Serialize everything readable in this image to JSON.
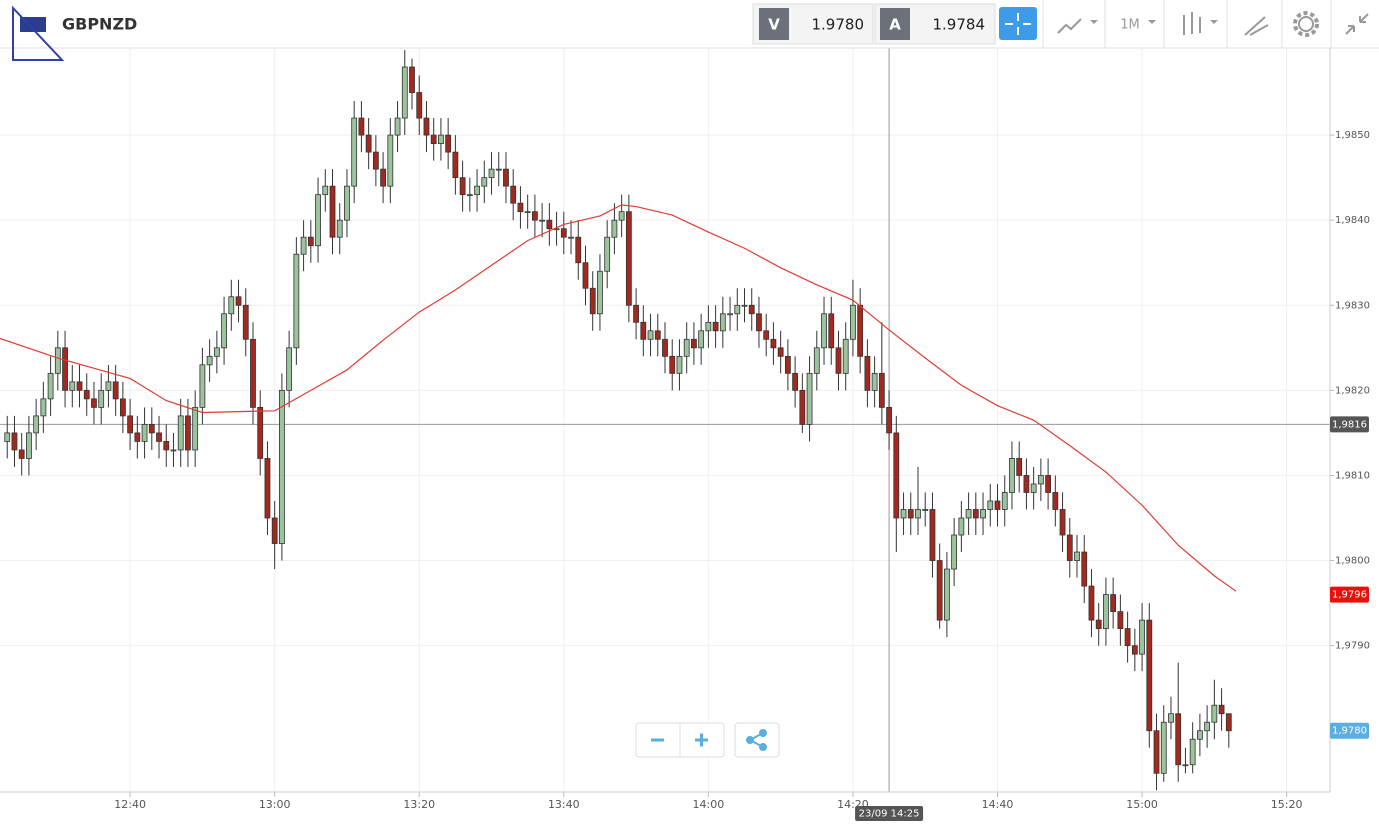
{
  "header": {
    "symbol": "GBPNZD",
    "bid_label": "V",
    "bid": "1.9780",
    "ask_label": "A",
    "ask": "1.9784",
    "timeframe": "1M"
  },
  "chart_data": {
    "type": "candlestick",
    "xlim": [
      "12:22",
      "15:26"
    ],
    "xticks": [
      "12:40",
      "13:00",
      "13:20",
      "13:40",
      "14:00",
      "14:20",
      "14:40",
      "15:00",
      "15:20"
    ],
    "ylim": [
      1.97728,
      1.986
    ],
    "yticks": [
      {
        "value": 1.979,
        "label": "1,9790"
      },
      {
        "value": 1.98,
        "label": "1,9800"
      },
      {
        "value": 1.981,
        "label": "1,9810"
      },
      {
        "value": 1.982,
        "label": "1,9820"
      },
      {
        "value": 1.983,
        "label": "1,9830"
      },
      {
        "value": 1.984,
        "label": "1,9840"
      },
      {
        "value": 1.985,
        "label": "1,9850"
      }
    ],
    "grid": true,
    "up_color": "#9cc49c",
    "down_color": "#a3291f",
    "x": [
      "12:23",
      "12:24",
      "12:25",
      "12:26",
      "12:27",
      "12:28",
      "12:29",
      "12:30",
      "12:31",
      "12:32",
      "12:33",
      "12:34",
      "12:35",
      "12:36",
      "12:37",
      "12:38",
      "12:39",
      "12:40",
      "12:41",
      "12:42",
      "12:43",
      "12:44",
      "12:45",
      "12:46",
      "12:47",
      "12:48",
      "12:49",
      "12:50",
      "12:51",
      "12:52",
      "12:53",
      "12:54",
      "12:55",
      "12:56",
      "12:57",
      "12:58",
      "12:59",
      "13:00",
      "13:01",
      "13:02",
      "13:03",
      "13:04",
      "13:05",
      "13:06",
      "13:07",
      "13:08",
      "13:09",
      "13:10",
      "13:11",
      "13:12",
      "13:13",
      "13:14",
      "13:15",
      "13:16",
      "13:17",
      "13:18",
      "13:19",
      "13:20",
      "13:21",
      "13:22",
      "13:23",
      "13:24",
      "13:25",
      "13:26",
      "13:27",
      "13:28",
      "13:29",
      "13:30",
      "13:31",
      "13:32",
      "13:33",
      "13:34",
      "13:35",
      "13:36",
      "13:37",
      "13:38",
      "13:39",
      "13:40",
      "13:41",
      "13:42",
      "13:43",
      "13:44",
      "13:45",
      "13:46",
      "13:47",
      "13:48",
      "13:49",
      "13:50",
      "13:51",
      "13:52",
      "13:53",
      "13:54",
      "13:55",
      "13:56",
      "13:57",
      "13:58",
      "13:59",
      "14:00",
      "14:01",
      "14:02",
      "14:03",
      "14:04",
      "14:05",
      "14:06",
      "14:07",
      "14:08",
      "14:09",
      "14:10",
      "14:11",
      "14:12",
      "14:13",
      "14:14",
      "14:15",
      "14:16",
      "14:17",
      "14:18",
      "14:19",
      "14:20",
      "14:21",
      "14:22",
      "14:23",
      "14:24",
      "14:25",
      "14:26",
      "14:27",
      "14:28",
      "14:29",
      "14:30",
      "14:31",
      "14:32",
      "14:33",
      "14:34",
      "14:35",
      "14:36",
      "14:37",
      "14:38",
      "14:39",
      "14:40",
      "14:41",
      "14:42",
      "14:43",
      "14:44",
      "14:45",
      "14:46",
      "14:47",
      "14:48",
      "14:49",
      "14:50",
      "14:51",
      "14:52",
      "14:53",
      "14:54",
      "14:55",
      "14:56",
      "14:57",
      "14:58",
      "14:59",
      "15:00",
      "15:01",
      "15:02",
      "15:03",
      "15:04",
      "15:05",
      "15:06",
      "15:07",
      "15:08",
      "15:09",
      "15:10",
      "15:11",
      "15:12"
    ],
    "open": [
      1.9814,
      1.9815,
      1.9813,
      1.9812,
      1.9815,
      1.9817,
      1.9819,
      1.9822,
      1.9825,
      1.982,
      1.9821,
      1.982,
      1.9819,
      1.9818,
      1.982,
      1.9821,
      1.9819,
      1.9817,
      1.9815,
      1.9814,
      1.9816,
      1.9815,
      1.9814,
      1.9813,
      1.9813,
      1.9817,
      1.9813,
      1.9818,
      1.9823,
      1.9824,
      1.9825,
      1.9829,
      1.9831,
      1.983,
      1.9826,
      1.9818,
      1.9812,
      1.9805,
      1.9802,
      1.982,
      1.9825,
      1.9836,
      1.9838,
      1.9837,
      1.9843,
      1.9844,
      1.9838,
      1.984,
      1.9844,
      1.9852,
      1.985,
      1.9848,
      1.9846,
      1.9844,
      1.985,
      1.9852,
      1.9858,
      1.9855,
      1.9852,
      1.985,
      1.9849,
      1.985,
      1.9848,
      1.9845,
      1.9843,
      1.9843,
      1.9844,
      1.9845,
      1.9846,
      1.9846,
      1.9844,
      1.9842,
      1.9841,
      1.9841,
      1.984,
      1.984,
      1.9839,
      1.9839,
      1.9838,
      1.9838,
      1.9835,
      1.9832,
      1.9829,
      1.9834,
      1.9838,
      1.984,
      1.9841,
      1.983,
      1.9828,
      1.9826,
      1.9827,
      1.9826,
      1.9824,
      1.9822,
      1.9824,
      1.9826,
      1.9825,
      1.9827,
      1.9828,
      1.9827,
      1.9829,
      1.9829,
      1.983,
      1.983,
      1.9829,
      1.9827,
      1.9826,
      1.9825,
      1.9824,
      1.9822,
      1.982,
      1.9816,
      1.9822,
      1.9825,
      1.9829,
      1.9825,
      1.9822,
      1.9826,
      1.983,
      1.9824,
      1.982,
      1.9822,
      1.9818,
      1.9815,
      1.9805,
      1.9806,
      1.9805,
      1.9806,
      1.9806,
      1.98,
      1.9793,
      1.9799,
      1.9803,
      1.9805,
      1.9806,
      1.9805,
      1.9806,
      1.9807,
      1.9806,
      1.9808,
      1.9812,
      1.981,
      1.9808,
      1.9809,
      1.981,
      1.9808,
      1.9806,
      1.9803,
      1.98,
      1.9801,
      1.9797,
      1.9793,
      1.9792,
      1.9796,
      1.9794,
      1.9792,
      1.979,
      1.9789,
      1.9793,
      1.978,
      1.9775,
      1.9781,
      1.9782,
      1.9776,
      1.9776,
      1.9779,
      1.978,
      1.9781,
      1.9783,
      1.9782
    ],
    "high": [
      1.9817,
      1.9817,
      1.9815,
      1.9817,
      1.9819,
      1.9821,
      1.9824,
      1.9827,
      1.9827,
      1.9823,
      1.9823,
      1.9822,
      1.9821,
      1.9822,
      1.9823,
      1.9823,
      1.9821,
      1.9819,
      1.9817,
      1.9818,
      1.9818,
      1.9817,
      1.9816,
      1.9815,
      1.9819,
      1.9819,
      1.982,
      1.9825,
      1.9826,
      1.9827,
      1.9831,
      1.9833,
      1.9833,
      1.9832,
      1.9828,
      1.982,
      1.9814,
      1.9807,
      1.9822,
      1.9827,
      1.9838,
      1.984,
      1.984,
      1.9845,
      1.9846,
      1.9846,
      1.9842,
      1.9846,
      1.9854,
      1.9854,
      1.9852,
      1.985,
      1.9848,
      1.9852,
      1.9854,
      1.986,
      1.9859,
      1.9857,
      1.9854,
      1.9852,
      1.9852,
      1.9852,
      1.985,
      1.9847,
      1.9845,
      1.9846,
      1.9847,
      1.9848,
      1.9848,
      1.9848,
      1.9846,
      1.9844,
      1.9843,
      1.9843,
      1.9842,
      1.9842,
      1.9841,
      1.9841,
      1.984,
      1.984,
      1.9837,
      1.9834,
      1.9836,
      1.984,
      1.9842,
      1.9843,
      1.9843,
      1.9832,
      1.983,
      1.9829,
      1.9829,
      1.9828,
      1.9826,
      1.9826,
      1.9828,
      1.9828,
      1.9829,
      1.983,
      1.983,
      1.9831,
      1.9831,
      1.9832,
      1.9832,
      1.9832,
      1.9831,
      1.9829,
      1.9828,
      1.9827,
      1.9826,
      1.9824,
      1.9822,
      1.9824,
      1.9827,
      1.9831,
      1.9831,
      1.9827,
      1.9828,
      1.9833,
      1.9832,
      1.9826,
      1.9824,
      1.9828,
      1.982,
      1.9817,
      1.9808,
      1.9808,
      1.9811,
      1.9808,
      1.9808,
      1.9802,
      1.9801,
      1.9805,
      1.9807,
      1.9808,
      1.9808,
      1.9808,
      1.9809,
      1.9809,
      1.981,
      1.9814,
      1.9814,
      1.9812,
      1.9811,
      1.9812,
      1.9812,
      1.981,
      1.9808,
      1.9805,
      1.9803,
      1.9803,
      1.9799,
      1.9795,
      1.9798,
      1.9798,
      1.9796,
      1.9794,
      1.9792,
      1.9795,
      1.9795,
      1.9782,
      1.9783,
      1.9784,
      1.9788,
      1.9778,
      1.9781,
      1.9782,
      1.9783,
      1.9786,
      1.9785,
      1.9782
    ],
    "low": [
      1.9812,
      1.9811,
      1.981,
      1.981,
      1.9813,
      1.9815,
      1.9817,
      1.982,
      1.9818,
      1.9818,
      1.9818,
      1.9817,
      1.9816,
      1.9816,
      1.9818,
      1.9817,
      1.9815,
      1.9813,
      1.9812,
      1.9812,
      1.9813,
      1.9812,
      1.9811,
      1.9811,
      1.9811,
      1.9811,
      1.9811,
      1.9816,
      1.9821,
      1.9822,
      1.9823,
      1.9827,
      1.9828,
      1.9824,
      1.9816,
      1.981,
      1.9803,
      1.9799,
      1.98,
      1.9818,
      1.9823,
      1.9834,
      1.9835,
      1.9835,
      1.9841,
      1.9836,
      1.9836,
      1.9838,
      1.9842,
      1.9848,
      1.9846,
      1.9844,
      1.9842,
      1.9842,
      1.9848,
      1.985,
      1.9853,
      1.985,
      1.9848,
      1.9847,
      1.9847,
      1.9846,
      1.9843,
      1.9841,
      1.9841,
      1.9841,
      1.9842,
      1.9843,
      1.9844,
      1.9842,
      1.984,
      1.9839,
      1.9839,
      1.9838,
      1.9838,
      1.9837,
      1.9837,
      1.9836,
      1.9836,
      1.9833,
      1.983,
      1.9827,
      1.9827,
      1.9832,
      1.9836,
      1.9838,
      1.9828,
      1.9826,
      1.9824,
      1.9824,
      1.9824,
      1.9822,
      1.982,
      1.982,
      1.9822,
      1.9823,
      1.9823,
      1.9825,
      1.9825,
      1.9825,
      1.9827,
      1.9827,
      1.9828,
      1.9827,
      1.9825,
      1.9824,
      1.9823,
      1.9822,
      1.982,
      1.9818,
      1.9815,
      1.9814,
      1.982,
      1.9823,
      1.9823,
      1.982,
      1.982,
      1.9824,
      1.9822,
      1.9818,
      1.9818,
      1.9816,
      1.9813,
      1.9801,
      1.9803,
      1.9803,
      1.9803,
      1.9804,
      1.9798,
      1.9792,
      1.9791,
      1.9797,
      1.9801,
      1.9803,
      1.9803,
      1.9803,
      1.9804,
      1.9804,
      1.9804,
      1.9806,
      1.9808,
      1.9806,
      1.9806,
      1.9807,
      1.9806,
      1.9804,
      1.9801,
      1.9798,
      1.9798,
      1.9795,
      1.9791,
      1.979,
      1.979,
      1.9792,
      1.979,
      1.9788,
      1.9787,
      1.9787,
      1.9778,
      1.9773,
      1.9774,
      1.9779,
      1.9774,
      1.9775,
      1.9775,
      1.9777,
      1.9778,
      1.9779,
      1.978,
      1.9778
    ],
    "close": [
      1.9815,
      1.9813,
      1.9812,
      1.9815,
      1.9817,
      1.9819,
      1.9822,
      1.9825,
      1.982,
      1.9821,
      1.982,
      1.9819,
      1.9818,
      1.982,
      1.9821,
      1.9819,
      1.9817,
      1.9815,
      1.9814,
      1.9816,
      1.9815,
      1.9814,
      1.9813,
      1.9813,
      1.9817,
      1.9813,
      1.9818,
      1.9823,
      1.9824,
      1.9825,
      1.9829,
      1.9831,
      1.983,
      1.9826,
      1.9818,
      1.9812,
      1.9805,
      1.9802,
      1.982,
      1.9825,
      1.9836,
      1.9838,
      1.9837,
      1.9843,
      1.9844,
      1.9838,
      1.984,
      1.9844,
      1.9852,
      1.985,
      1.9848,
      1.9846,
      1.9844,
      1.985,
      1.9852,
      1.9858,
      1.9855,
      1.9852,
      1.985,
      1.9849,
      1.985,
      1.9848,
      1.9845,
      1.9843,
      1.9843,
      1.9844,
      1.9845,
      1.9846,
      1.9846,
      1.9844,
      1.9842,
      1.9841,
      1.9841,
      1.984,
      1.984,
      1.9839,
      1.9839,
      1.9838,
      1.9838,
      1.9835,
      1.9832,
      1.9829,
      1.9834,
      1.9838,
      1.984,
      1.9841,
      1.983,
      1.9828,
      1.9826,
      1.9827,
      1.9826,
      1.9824,
      1.9822,
      1.9824,
      1.9826,
      1.9825,
      1.9827,
      1.9828,
      1.9827,
      1.9829,
      1.9829,
      1.983,
      1.983,
      1.9829,
      1.9827,
      1.9826,
      1.9825,
      1.9824,
      1.9822,
      1.982,
      1.9816,
      1.9822,
      1.9825,
      1.9829,
      1.9825,
      1.9822,
      1.9826,
      1.983,
      1.9824,
      1.982,
      1.9822,
      1.9818,
      1.9815,
      1.9805,
      1.9806,
      1.9805,
      1.9806,
      1.9806,
      1.98,
      1.9793,
      1.9799,
      1.9803,
      1.9805,
      1.9806,
      1.9805,
      1.9806,
      1.9807,
      1.9806,
      1.9808,
      1.9812,
      1.981,
      1.9808,
      1.9809,
      1.981,
      1.9808,
      1.9806,
      1.9803,
      1.98,
      1.9801,
      1.9797,
      1.9793,
      1.9792,
      1.9796,
      1.9794,
      1.9792,
      1.979,
      1.9789,
      1.9793,
      1.978,
      1.9775,
      1.9781,
      1.9782,
      1.9776,
      1.9776,
      1.9779,
      1.978,
      1.9781,
      1.9783,
      1.9782,
      1.978
    ],
    "ma": {
      "color": "#e03c31",
      "x": [
        "12:22",
        "12:30",
        "12:40",
        "12:45",
        "12:50",
        "13:00",
        "13:05",
        "13:10",
        "13:15",
        "13:20",
        "13:25",
        "13:30",
        "13:35",
        "13:40",
        "13:45",
        "13:48",
        "13:50",
        "13:55",
        "14:00",
        "14:05",
        "14:10",
        "14:15",
        "14:20",
        "14:25",
        "14:30",
        "14:35",
        "14:40",
        "14:45",
        "14:50",
        "14:55",
        "15:00",
        "15:05",
        "15:10",
        "15:13"
      ],
      "values": [
        1.98261,
        1.98238,
        1.98214,
        1.98188,
        1.98174,
        1.98176,
        1.982,
        1.98224,
        1.98259,
        1.98292,
        1.98318,
        1.98347,
        1.98376,
        1.98395,
        1.98405,
        1.98418,
        1.98416,
        1.98406,
        1.98386,
        1.98367,
        1.98344,
        1.98324,
        1.98306,
        1.98271,
        1.98238,
        1.98206,
        1.98182,
        1.98165,
        1.98135,
        1.98104,
        1.98065,
        1.98018,
        1.97982,
        1.97964
      ]
    },
    "crosshair": {
      "x": "14:25",
      "y": 1.9816,
      "label": "23/09 14:25"
    },
    "price_markers": [
      {
        "value": 1.9816,
        "label": "1,9816",
        "color": "#555555"
      },
      {
        "value": 1.9796,
        "label": "1,9796",
        "color": "#e8100c"
      },
      {
        "value": 1.978,
        "label": "1,9780",
        "color": "#5aaee0"
      }
    ]
  }
}
